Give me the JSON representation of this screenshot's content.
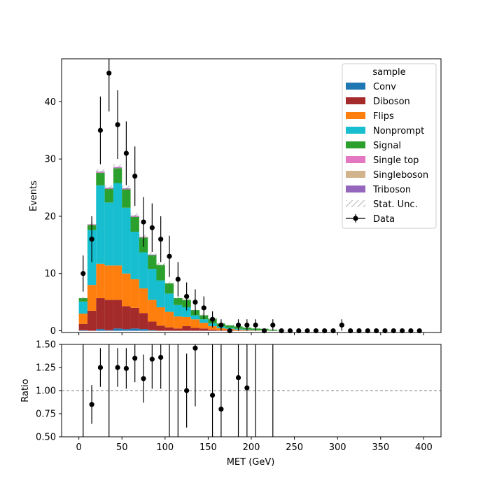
{
  "chart_data": {
    "type": "bar",
    "stacked": true,
    "bin_width": 10,
    "x": [
      5,
      15,
      25,
      35,
      45,
      55,
      65,
      75,
      85,
      95,
      105,
      115,
      125,
      135,
      145,
      155,
      165,
      175,
      185,
      195,
      205,
      215,
      225,
      235,
      245,
      255,
      265,
      275,
      285,
      295,
      305,
      315,
      325,
      335,
      345,
      355,
      365,
      375,
      385,
      395
    ],
    "xlabel": "MET (GeV)",
    "xlim": [
      -20,
      420
    ],
    "xticks": [
      0,
      50,
      100,
      150,
      200,
      250,
      300,
      350,
      400
    ],
    "top_panel": {
      "ylabel": "Events",
      "ylim": [
        -0.3,
        47.5
      ],
      "yticks": [
        0,
        10,
        20,
        30,
        40
      ]
    },
    "bottom_panel": {
      "ylabel": "Ratio",
      "ylim": [
        0.5,
        1.5
      ],
      "yticks": [
        "0.50",
        "0.75",
        "1.00",
        "1.25",
        "1.50"
      ],
      "reference_line": 1.0
    },
    "legend": {
      "title": "sample",
      "placement": "top-right"
    },
    "series": [
      {
        "name": "Conv",
        "color": "#1f77b4",
        "values": [
          0.1,
          0,
          0.3,
          0.1,
          0.4,
          0.3,
          0.4,
          0.3,
          0.1,
          0,
          0,
          0,
          0,
          0,
          0,
          0,
          0,
          0,
          0,
          0,
          0,
          0,
          0,
          0,
          0,
          0,
          0,
          0,
          0,
          0,
          0,
          0,
          0,
          0,
          0,
          0,
          0,
          0,
          0,
          0
        ]
      },
      {
        "name": "Diboson",
        "color": "#a52a2a",
        "values": [
          1.1,
          3.5,
          5.4,
          5.3,
          5.0,
          4.0,
          3.6,
          2.8,
          1.5,
          0.9,
          0.6,
          0.4,
          0.8,
          0.5,
          0.4,
          0.2,
          0.1,
          0.1,
          0.05,
          0.05,
          0,
          0,
          0,
          0,
          0,
          0,
          0,
          0,
          0,
          0,
          0,
          0,
          0,
          0,
          0,
          0,
          0,
          0,
          0,
          0
        ]
      },
      {
        "name": "Flips",
        "color": "#ff7f0e",
        "values": [
          1.8,
          4.5,
          6.0,
          6.0,
          6.0,
          5.7,
          5.0,
          4.3,
          3.8,
          3.2,
          2.7,
          2.1,
          1.6,
          1.5,
          1.0,
          0.6,
          0.35,
          0.25,
          0.15,
          0.1,
          0.05,
          0.05,
          0,
          0,
          0,
          0,
          0,
          0,
          0,
          0,
          0,
          0,
          0,
          0,
          0,
          0,
          0,
          0,
          0,
          0
        ]
      },
      {
        "name": "Nonprompt",
        "color": "#17becf",
        "values": [
          2.1,
          9.6,
          13.7,
          11.0,
          14.4,
          11.5,
          8.3,
          6.3,
          5.4,
          4.7,
          3.2,
          2.0,
          1.7,
          0.7,
          0.6,
          0.5,
          0.3,
          0.2,
          0.15,
          0.1,
          0.05,
          0.05,
          0,
          0,
          0,
          0,
          0,
          0,
          0,
          0,
          0,
          0,
          0,
          0,
          0,
          0,
          0,
          0,
          0,
          0
        ]
      },
      {
        "name": "Signal",
        "color": "#2ca02c",
        "values": [
          0.6,
          0.9,
          2.2,
          2.4,
          2.6,
          3.2,
          2.6,
          2.6,
          2.4,
          2.7,
          1.8,
          1.2,
          1.3,
          0.9,
          0.7,
          0.8,
          0.5,
          0.4,
          0.4,
          0.3,
          0.3,
          0.25,
          0.2,
          0.05,
          0,
          0,
          0,
          0,
          0,
          0,
          0,
          0,
          0,
          0,
          0,
          0,
          0,
          0,
          0,
          0
        ]
      },
      {
        "name": "Single top",
        "color": "#e377c2",
        "values": [
          0,
          0.1,
          0.1,
          0.1,
          0.1,
          0.1,
          0.1,
          0.1,
          0,
          0,
          0,
          0,
          0,
          0,
          0,
          0,
          0,
          0,
          0,
          0,
          0,
          0,
          0,
          0,
          0,
          0,
          0,
          0,
          0,
          0,
          0,
          0,
          0,
          0,
          0,
          0,
          0,
          0,
          0,
          0
        ]
      },
      {
        "name": "Singleboson",
        "color": "#d2b48c",
        "values": [
          0,
          0,
          0,
          0,
          0,
          0,
          0,
          0,
          0,
          0,
          0,
          0,
          0,
          0,
          0,
          0,
          0,
          0,
          0,
          0,
          0,
          0,
          0,
          0,
          0,
          0,
          0,
          0,
          0,
          0,
          0,
          0,
          0,
          0,
          0,
          0,
          0,
          0,
          0,
          0
        ]
      },
      {
        "name": "Triboson",
        "color": "#9467bd",
        "values": [
          0,
          0,
          0.1,
          0.1,
          0.1,
          0.1,
          0.1,
          0,
          0.1,
          0,
          0,
          0,
          0,
          0,
          0,
          0,
          0,
          0,
          0,
          0,
          0,
          0,
          0,
          0,
          0,
          0,
          0,
          0,
          0,
          0,
          0,
          0,
          0,
          0,
          0,
          0,
          0,
          0,
          0,
          0
        ]
      }
    ],
    "stat_unc": {
      "name": "Stat. Unc.",
      "hatch_color": "#888888",
      "values": [
        0.25,
        0.35,
        0.45,
        0.45,
        0.45,
        0.45,
        0.42,
        0.4,
        0.38,
        0.35,
        0.3,
        0.28,
        0.28,
        0.25,
        0.22,
        0.2,
        0.15,
        0.15,
        0.12,
        0.1,
        0.08,
        0.06,
        0.05,
        0.03,
        0,
        0,
        0,
        0,
        0,
        0,
        0,
        0,
        0,
        0,
        0,
        0,
        0,
        0,
        0,
        0
      ]
    },
    "data": {
      "name": "Data",
      "color": "#000000",
      "values": [
        10,
        16,
        35,
        45,
        36,
        31,
        27,
        19,
        18,
        16,
        13,
        9,
        6,
        5,
        4,
        2,
        1,
        0,
        1,
        1,
        1,
        0,
        1,
        0,
        0,
        0,
        0,
        0,
        0,
        0,
        1,
        0,
        0,
        0,
        0,
        0,
        0,
        0,
        0,
        0
      ]
    },
    "ratio": {
      "x": [
        15,
        25,
        45,
        55,
        65,
        75,
        85,
        95,
        125,
        135,
        155,
        165,
        185,
        195
      ],
      "values": [
        0.85,
        1.25,
        1.25,
        1.24,
        1.35,
        1.13,
        1.34,
        1.36,
        1.0,
        1.46,
        0.95,
        0.8,
        1.14,
        1.03
      ],
      "errors": [
        0.21,
        0.21,
        0.21,
        0.22,
        0.26,
        0.26,
        0.32,
        0.34,
        0.4,
        0.63,
        0.7,
        0.8,
        1.14,
        1.03
      ],
      "full_height_x": [
        5,
        35,
        105,
        115,
        205,
        225
      ]
    }
  }
}
